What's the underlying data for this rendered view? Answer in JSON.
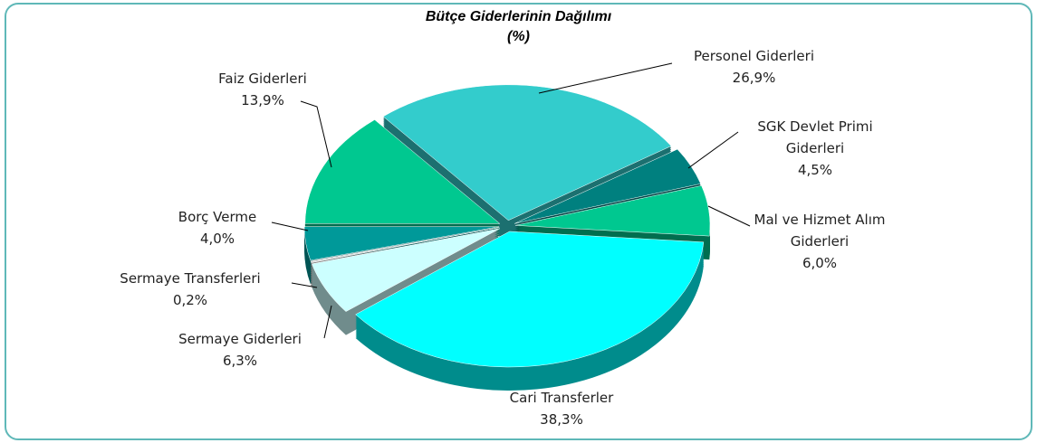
{
  "chart_data": {
    "type": "pie",
    "title": "Bütçe Giderlerinin Dağılımı",
    "subtitle": "(%)",
    "categories": [
      "Personel Giderleri",
      "SGK Devlet Primi Giderleri",
      "Mal ve Hizmet Alım Giderleri",
      "Cari Transferler",
      "Sermaye Giderleri",
      "Sermaye Transferleri",
      "Borç Verme",
      "Faiz Giderleri"
    ],
    "values": [
      26.9,
      4.5,
      6.0,
      38.3,
      6.3,
      0.2,
      4.0,
      13.9
    ],
    "value_labels": [
      "26,9%",
      "4,5%",
      "6,0%",
      "38,3%",
      "6,3%",
      "0,2%",
      "4,0%",
      "13,9%"
    ],
    "colors": [
      "#33cccc",
      "#00807f",
      "#00c890",
      "#00ffff",
      "#ccffff",
      "#dcdcdc",
      "#009999",
      "#00c890"
    ]
  }
}
